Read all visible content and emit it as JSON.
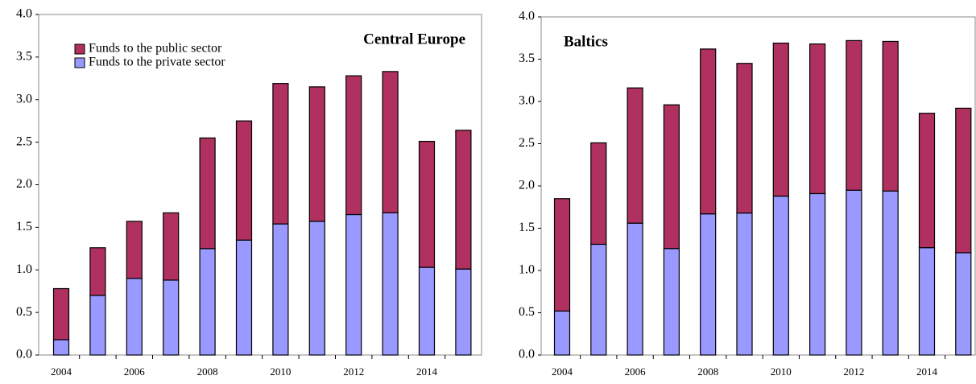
{
  "chart_data": [
    {
      "type": "stacked_bar",
      "title": "Central Europe",
      "categories": [
        "2004",
        null,
        "2006",
        null,
        "2008",
        null,
        "2010",
        null,
        "2012",
        null,
        "2014",
        null
      ],
      "series": [
        {
          "name": "Funds to the private sector",
          "color": "#9999ff",
          "values": [
            0.18,
            0.7,
            0.9,
            0.88,
            1.25,
            1.35,
            1.54,
            1.57,
            1.65,
            1.67,
            1.03,
            1.01
          ]
        },
        {
          "name": "Funds to the public sector",
          "color": "#b03060",
          "values": [
            0.6,
            0.56,
            0.67,
            0.79,
            1.3,
            1.4,
            1.65,
            1.58,
            1.63,
            1.66,
            1.48,
            1.63
          ]
        }
      ],
      "ylim": [
        0,
        4
      ],
      "yticks": [
        {
          "value": 0,
          "label": "0.0"
        },
        {
          "value": 0.5,
          "label": "0.5"
        },
        {
          "value": 1,
          "label": "1.0"
        },
        {
          "value": 1.5,
          "label": "1.5"
        },
        {
          "value": 2,
          "label": "2.0"
        },
        {
          "value": 2.5,
          "label": "2.5"
        },
        {
          "value": 3,
          "label": "3.0"
        },
        {
          "value": 3.5,
          "label": "3.5"
        },
        {
          "value": 4,
          "label": "4.0"
        }
      ],
      "legend": "upper left"
    },
    {
      "type": "stacked_bar",
      "title": "Baltics",
      "categories": [
        "2004",
        null,
        "2006",
        null,
        "2008",
        null,
        "2010",
        null,
        "2012",
        null,
        "2014",
        null
      ],
      "series": [
        {
          "name": "Funds to the private sector",
          "color": "#9999ff",
          "values": [
            0.52,
            1.31,
            1.56,
            1.26,
            1.67,
            1.68,
            1.88,
            1.91,
            1.95,
            1.94,
            1.27,
            1.21
          ]
        },
        {
          "name": "Funds to the public sector",
          "color": "#b03060",
          "values": [
            1.33,
            1.2,
            1.6,
            1.7,
            1.95,
            1.77,
            1.81,
            1.77,
            1.77,
            1.77,
            1.59,
            1.71
          ]
        }
      ],
      "ylim": [
        0,
        4
      ],
      "yticks": [
        {
          "value": 0,
          "label": "0.0"
        },
        {
          "value": 0.5,
          "label": "0.5"
        },
        {
          "value": 1,
          "label": "1.0"
        },
        {
          "value": 1.5,
          "label": "1.5"
        },
        {
          "value": 2,
          "label": "2.0"
        },
        {
          "value": 2.5,
          "label": "2.5"
        },
        {
          "value": 3,
          "label": "3.0"
        },
        {
          "value": 3.5,
          "label": "3.5"
        },
        {
          "value": 4,
          "label": "4.0"
        }
      ],
      "legend": false
    }
  ]
}
